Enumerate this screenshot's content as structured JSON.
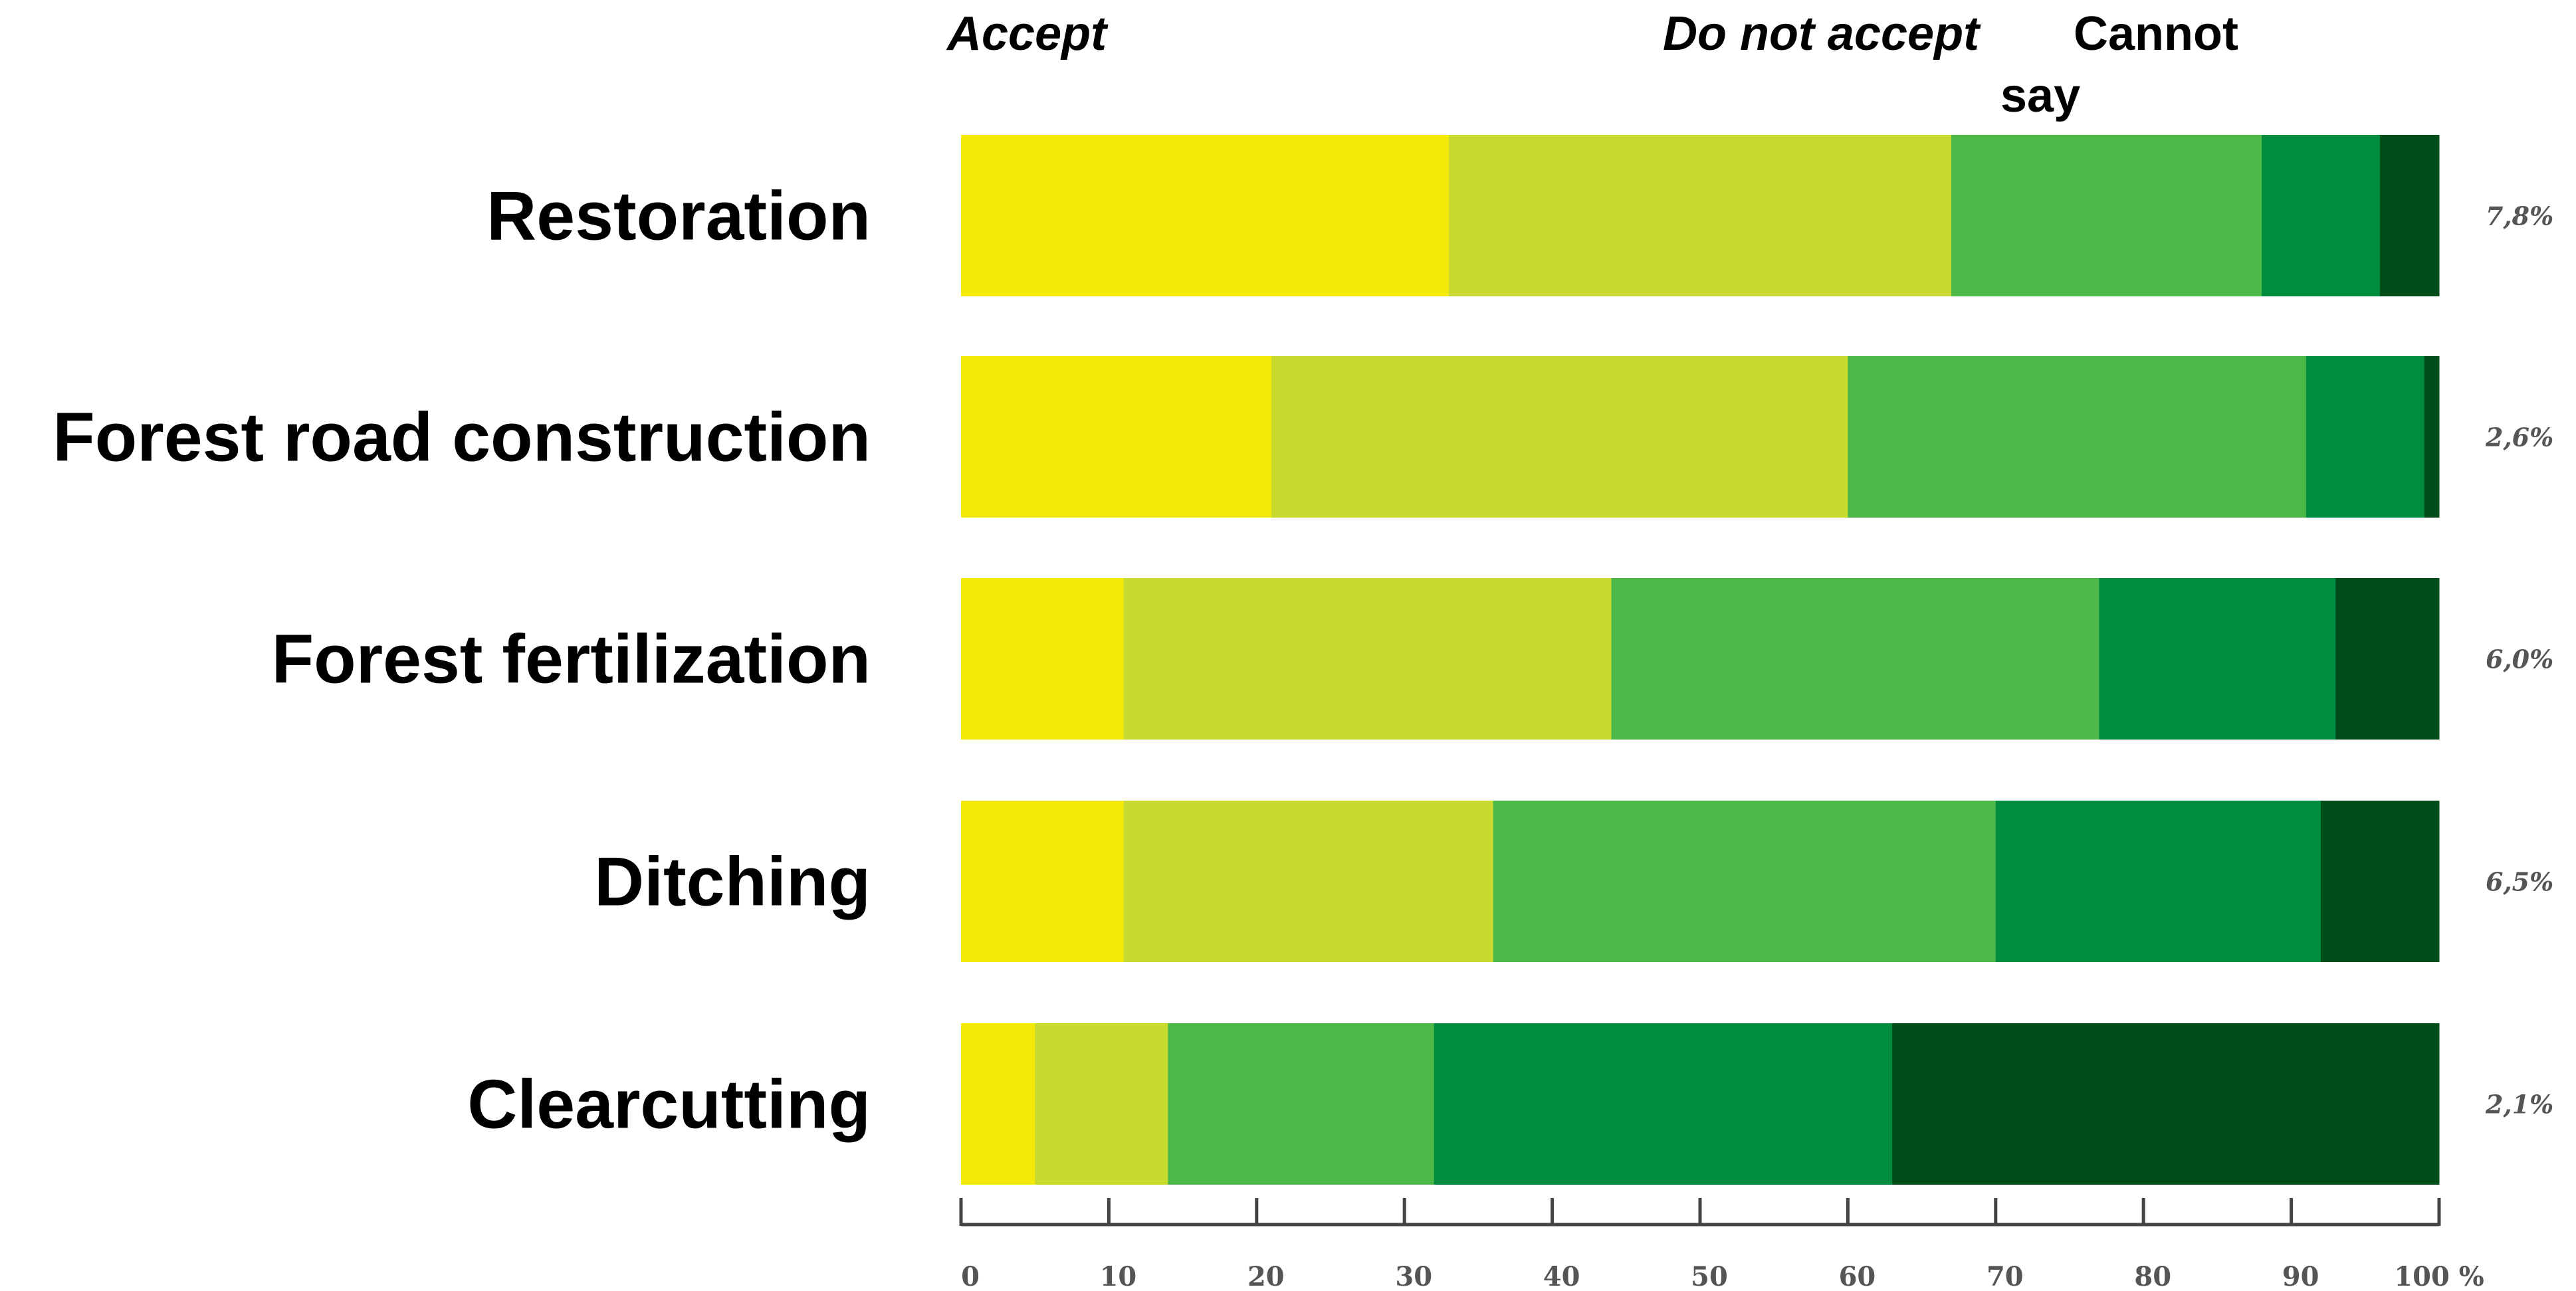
{
  "chart_data": {
    "type": "bar",
    "orientation": "horizontal",
    "stacked": true,
    "headers": {
      "accept": "Accept",
      "do_not_accept": "Do not accept",
      "cannot_say": "Cannot say"
    },
    "categories": [
      "Restoration",
      "Forest road construction",
      "Forest fertilization",
      "Ditching",
      "Clearcutting"
    ],
    "right_labels": [
      "7,8%",
      "2,6%",
      "6,0%",
      "6,5%",
      "2,1%"
    ],
    "series": [
      {
        "color": "#f4ea0a",
        "values": [
          33,
          21,
          11,
          11,
          5
        ]
      },
      {
        "color": "#c8da2e",
        "values": [
          34,
          39,
          33,
          25,
          9
        ]
      },
      {
        "color": "#4cb848",
        "values": [
          21,
          31,
          33,
          34,
          18
        ]
      },
      {
        "color": "#008c3f",
        "values": [
          8,
          8,
          16,
          22,
          31
        ]
      },
      {
        "color": "#004d1a",
        "values": [
          4,
          1,
          7,
          8,
          37
        ]
      }
    ],
    "x_ticks": [
      0,
      10,
      20,
      30,
      40,
      50,
      60,
      70,
      80,
      90,
      100
    ],
    "x_tick_labels": [
      "0",
      "10",
      "20",
      "30",
      "40",
      "50",
      "60",
      "70",
      "80",
      "90",
      "100 %"
    ],
    "xlim": [
      0,
      100
    ],
    "grid": false,
    "legend": "none"
  }
}
